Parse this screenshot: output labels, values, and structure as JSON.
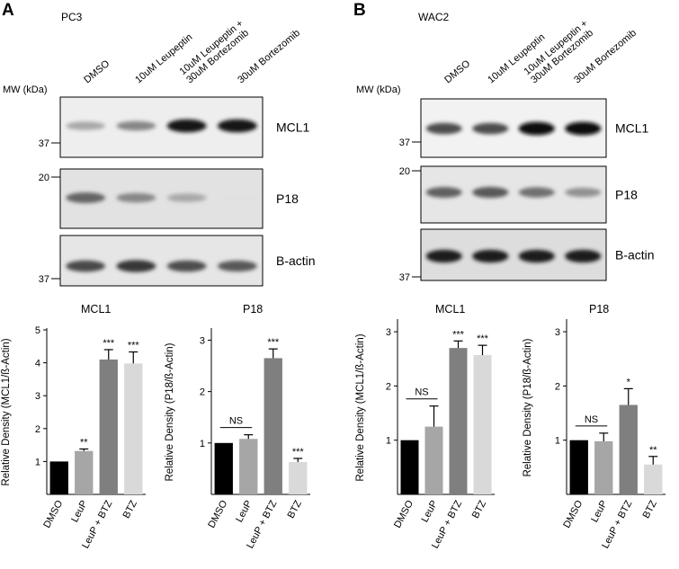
{
  "panels": [
    {
      "letter": "A",
      "cell_line": "PC3",
      "mw_label": "MW (kDa)",
      "lanes": [
        "DMSO",
        "10uM Leupeptin",
        "10uM Leupeptin +\n30uM Bortezomib",
        "30uM Bortezomib"
      ],
      "blots": [
        {
          "protein": "MCL1",
          "marker": "37",
          "intensities": [
            0.3,
            0.45,
            0.95,
            0.95
          ],
          "background": "#eeeeee"
        },
        {
          "protein": "P18",
          "marker": "20",
          "intensities": [
            0.6,
            0.45,
            0.3,
            0.05
          ],
          "background": "#e2e2e2"
        },
        {
          "protein": "B-actin",
          "marker": "37",
          "intensities": [
            0.72,
            0.8,
            0.7,
            0.65
          ],
          "background": "#e6e6e6"
        }
      ]
    },
    {
      "letter": "B",
      "cell_line": "WAC2",
      "mw_label": "MW (kDa)",
      "lanes": [
        "DMSO",
        "10uM Leupeptin",
        "10uM Leupeptin +\n30uM Bortezomib",
        "30uM Bortezomib"
      ],
      "blots": [
        {
          "protein": "MCL1",
          "marker": "37",
          "intensities": [
            0.7,
            0.7,
            0.97,
            0.97
          ],
          "background": "#f2f2f2"
        },
        {
          "protein": "P18",
          "marker": "20",
          "intensities": [
            0.62,
            0.65,
            0.55,
            0.4
          ],
          "background": "#e6e6e6"
        },
        {
          "protein": "B-actin",
          "marker": "37",
          "intensities": [
            0.92,
            0.92,
            0.92,
            0.92
          ],
          "background": "#dddddd"
        }
      ]
    }
  ],
  "chart_data": [
    {
      "type": "bar",
      "title": "MCL1",
      "ylabel": "Relative Density (MCL1/ß-Actin)",
      "categories": [
        "DMSO",
        "LeuP",
        "LeuP + BTZ",
        "BTZ"
      ],
      "values": [
        1.0,
        1.32,
        4.1,
        3.98
      ],
      "errors": [
        0,
        0.06,
        0.3,
        0.35
      ],
      "significance": [
        "",
        "**",
        "***",
        "***"
      ],
      "ylim": [
        0,
        5
      ],
      "yticks": [
        1,
        2,
        3,
        4,
        5
      ],
      "bar_colors": [
        "#000000",
        "#a6a6a6",
        "#7f7f7f",
        "#d9d9d9"
      ]
    },
    {
      "type": "bar",
      "title": "P18",
      "ylabel": "Relative Density (P18/ß-Actin)",
      "categories": [
        "DMSO",
        "LeuP",
        "LeuP + BTZ",
        "BTZ"
      ],
      "values": [
        1.0,
        1.08,
        2.65,
        0.63
      ],
      "errors": [
        0,
        0.08,
        0.18,
        0.07
      ],
      "significance": [
        "",
        "",
        "***",
        "***"
      ],
      "comparison": "NS",
      "ylim": [
        0,
        3.2
      ],
      "yticks": [
        1,
        2,
        3
      ],
      "bar_colors": [
        "#000000",
        "#a6a6a6",
        "#7f7f7f",
        "#d9d9d9"
      ]
    },
    {
      "type": "bar",
      "title": "MCL1",
      "ylabel": "Relative Density (MCL1/ß-Actin)",
      "categories": [
        "DMSO",
        "LeuP",
        "LeuP + BTZ",
        "BTZ"
      ],
      "values": [
        1.0,
        1.25,
        2.7,
        2.57
      ],
      "errors": [
        0,
        0.38,
        0.13,
        0.18
      ],
      "significance": [
        "",
        "",
        "***",
        "***"
      ],
      "comparison": "NS",
      "ylim": [
        0,
        3.2
      ],
      "yticks": [
        1,
        2,
        3
      ],
      "bar_colors": [
        "#000000",
        "#a6a6a6",
        "#7f7f7f",
        "#d9d9d9"
      ]
    },
    {
      "type": "bar",
      "title": "P18",
      "ylabel": "Relative Density (P18/ß-Actin)",
      "categories": [
        "DMSO",
        "LeuP",
        "LeuP + BTZ",
        "BTZ"
      ],
      "values": [
        1.0,
        0.98,
        1.65,
        0.55
      ],
      "errors": [
        0,
        0.15,
        0.3,
        0.15
      ],
      "significance": [
        "",
        "",
        "*",
        "**"
      ],
      "comparison": "NS",
      "ylim": [
        0,
        3.2
      ],
      "yticks": [
        1,
        2,
        3
      ],
      "bar_colors": [
        "#000000",
        "#a6a6a6",
        "#7f7f7f",
        "#d9d9d9"
      ]
    }
  ]
}
